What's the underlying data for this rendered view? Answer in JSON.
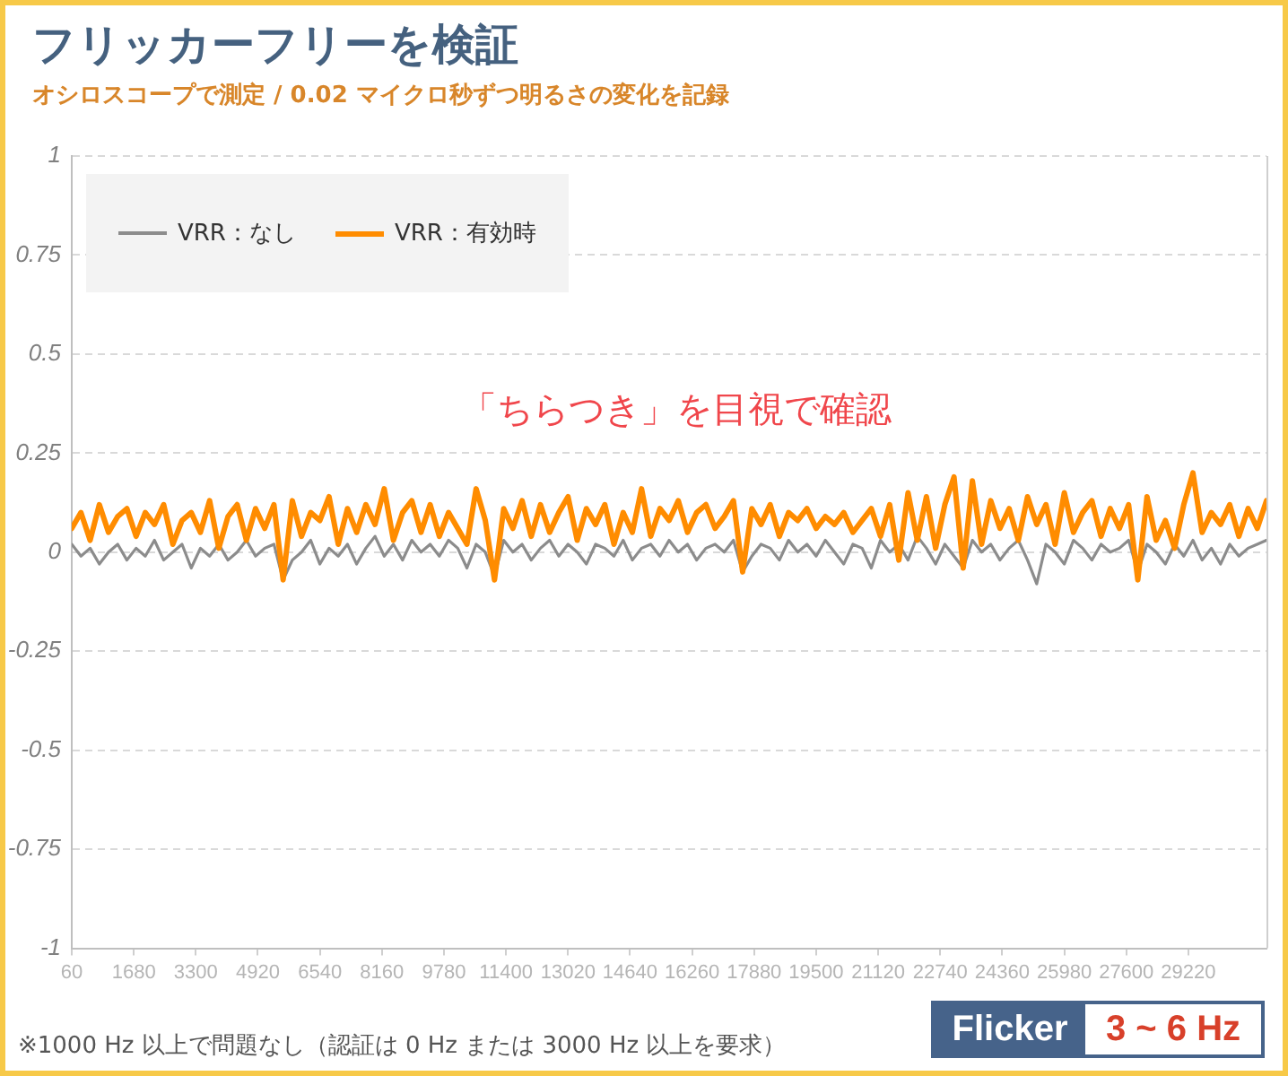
{
  "chart_data": {
    "type": "line",
    "title": "フリッカーフリーを検証",
    "subtitle": "オシロスコープで測定 / 0.02 マイクロ秒ずつ明るさの変化を記録",
    "x": [
      60,
      300,
      540,
      780,
      1020,
      1260,
      1500,
      1740,
      1980,
      2220,
      2460,
      2700,
      2940,
      3180,
      3420,
      3660,
      3900,
      4140,
      4380,
      4620,
      4860,
      5100,
      5340,
      5580,
      5820,
      6060,
      6300,
      6540,
      6780,
      7020,
      7260,
      7500,
      7740,
      7980,
      8220,
      8460,
      8700,
      8940,
      9180,
      9420,
      9660,
      9900,
      10140,
      10380,
      10620,
      10860,
      11100,
      11340,
      11580,
      11820,
      12060,
      12300,
      12540,
      12780,
      13020,
      13260,
      13500,
      13740,
      13980,
      14220,
      14460,
      14700,
      14940,
      15180,
      15420,
      15660,
      15900,
      16140,
      16380,
      16620,
      16860,
      17100,
      17340,
      17580,
      17820,
      18060,
      18300,
      18540,
      18780,
      19020,
      19260,
      19500,
      19740,
      19980,
      20220,
      20460,
      20700,
      20940,
      21180,
      21420,
      21660,
      21900,
      22140,
      22380,
      22620,
      22860,
      23100,
      23340,
      23580,
      23820,
      24060,
      24300,
      24540,
      24780,
      25020,
      25260,
      25500,
      25740,
      25980,
      26220,
      26460,
      26700,
      26940,
      27180,
      27420,
      27660,
      27900,
      28140,
      28380,
      28620,
      28860,
      29100,
      29340,
      29580,
      29820,
      30060,
      30300,
      30540,
      30780,
      31020,
      31260
    ],
    "series": [
      {
        "name": "VRR：なし",
        "color": "#8c8c8c",
        "values": [
          0.02,
          -0.01,
          0.01,
          -0.03,
          0.0,
          0.02,
          -0.02,
          0.01,
          -0.01,
          0.03,
          -0.02,
          0.0,
          0.02,
          -0.04,
          0.01,
          -0.01,
          0.02,
          -0.02,
          0.0,
          0.03,
          -0.01,
          0.01,
          0.02,
          -0.07,
          -0.02,
          0.0,
          0.03,
          -0.03,
          0.01,
          -0.01,
          0.02,
          -0.03,
          0.01,
          0.04,
          -0.01,
          0.02,
          -0.02,
          0.03,
          0.0,
          0.02,
          -0.01,
          0.03,
          0.01,
          -0.04,
          0.02,
          0.0,
          -0.06,
          0.03,
          0.0,
          0.02,
          -0.02,
          0.01,
          0.03,
          -0.01,
          0.02,
          0.0,
          -0.03,
          0.02,
          0.01,
          -0.01,
          0.03,
          -0.02,
          0.01,
          0.02,
          -0.01,
          0.03,
          0.0,
          0.02,
          -0.02,
          0.01,
          0.02,
          0.0,
          0.03,
          -0.05,
          -0.01,
          0.02,
          0.01,
          -0.02,
          0.03,
          0.0,
          0.02,
          -0.01,
          0.03,
          0.0,
          -0.03,
          0.02,
          0.01,
          -0.04,
          0.03,
          0.0,
          0.02,
          -0.02,
          0.04,
          0.01,
          -0.03,
          0.02,
          -0.01,
          -0.04,
          0.03,
          0.0,
          0.02,
          -0.02,
          0.01,
          0.03,
          -0.02,
          -0.08,
          0.02,
          0.0,
          -0.03,
          0.03,
          0.01,
          -0.02,
          0.02,
          0.0,
          0.01,
          0.03,
          -0.05,
          0.02,
          0.0,
          -0.03,
          0.02,
          -0.01,
          0.03,
          -0.02,
          0.01,
          -0.03,
          0.02,
          -0.01,
          0.01,
          0.02,
          0.03
        ]
      },
      {
        "name": "VRR：有効時",
        "color": "#ff8c00",
        "values": [
          0.06,
          0.1,
          0.03,
          0.12,
          0.05,
          0.09,
          0.11,
          0.04,
          0.1,
          0.07,
          0.12,
          0.02,
          0.08,
          0.1,
          0.05,
          0.13,
          0.01,
          0.09,
          0.12,
          0.03,
          0.11,
          0.06,
          0.12,
          -0.07,
          0.13,
          0.04,
          0.1,
          0.08,
          0.14,
          0.02,
          0.11,
          0.05,
          0.12,
          0.07,
          0.16,
          0.03,
          0.1,
          0.13,
          0.05,
          0.12,
          0.04,
          0.1,
          0.06,
          0.02,
          0.16,
          0.08,
          -0.07,
          0.11,
          0.06,
          0.13,
          0.04,
          0.12,
          0.05,
          0.1,
          0.14,
          0.03,
          0.11,
          0.07,
          0.12,
          0.02,
          0.1,
          0.05,
          0.16,
          0.04,
          0.11,
          0.08,
          0.13,
          0.05,
          0.1,
          0.12,
          0.06,
          0.09,
          0.13,
          -0.05,
          0.11,
          0.07,
          0.12,
          0.04,
          0.1,
          0.08,
          0.11,
          0.06,
          0.09,
          0.07,
          0.1,
          0.05,
          0.08,
          0.11,
          0.04,
          0.12,
          -0.02,
          0.15,
          0.03,
          0.14,
          0.01,
          0.12,
          0.19,
          -0.04,
          0.18,
          0.02,
          0.13,
          0.06,
          0.11,
          0.03,
          0.14,
          0.07,
          0.12,
          0.02,
          0.15,
          0.05,
          0.1,
          0.13,
          0.04,
          0.11,
          0.06,
          0.12,
          -0.07,
          0.14,
          0.03,
          0.08,
          0.01,
          0.12,
          0.2,
          0.05,
          0.1,
          0.07,
          0.12,
          0.04,
          0.11,
          0.06,
          0.13
        ]
      }
    ],
    "xlim": [
      60,
      31260
    ],
    "xticks": [
      60,
      1680,
      3300,
      4920,
      6540,
      8160,
      9780,
      11400,
      13020,
      14640,
      16260,
      17880,
      19500,
      21120,
      22740,
      24360,
      25980,
      27600,
      29220
    ],
    "ylim": [
      -1,
      1
    ],
    "yticks": [
      -1,
      -0.75,
      -0.5,
      -0.25,
      0,
      0.25,
      0.5,
      0.75,
      1
    ],
    "grid": "y",
    "legend": "top left",
    "annotations": [
      "「ちらつき」を目視で確認",
      "※1000 Hz 以上で問題なし（認証は 0 Hz または 3000 Hz 以上を要求）",
      "Flicker",
      "3 ~ 6 Hz"
    ]
  }
}
